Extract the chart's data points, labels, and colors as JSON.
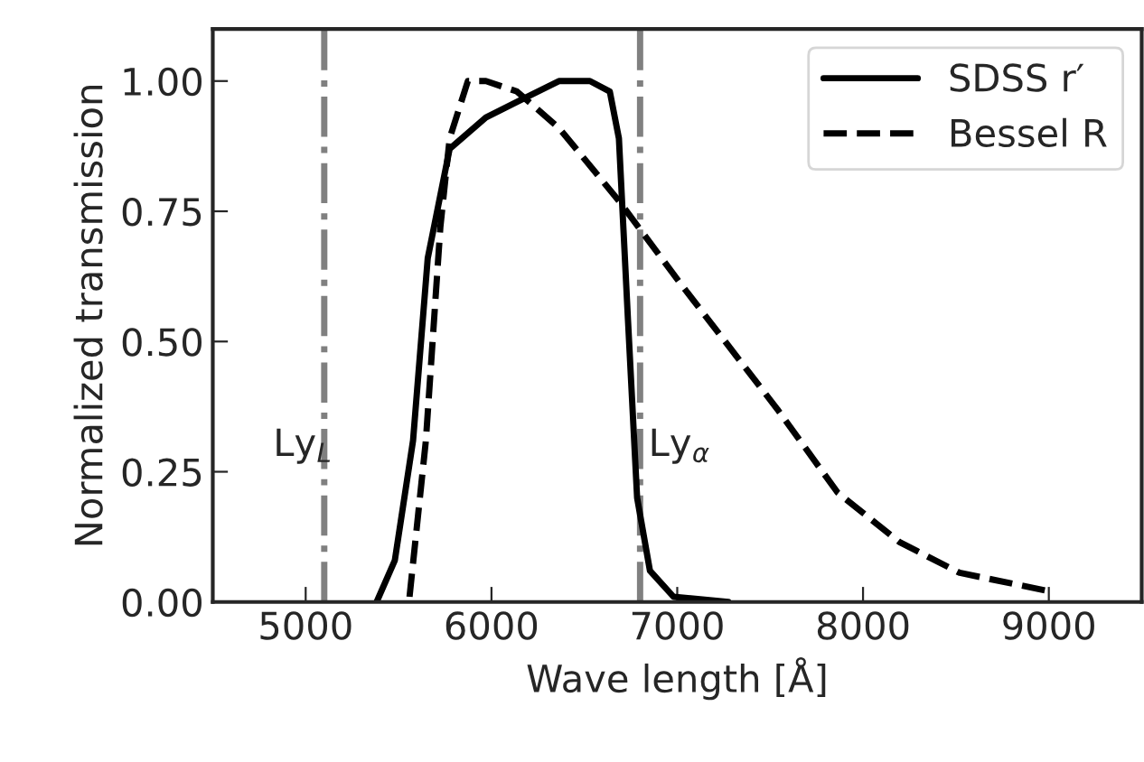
{
  "chart_data": {
    "type": "line",
    "xlabel": "Wave length [Å]",
    "ylabel": "Normalized transmission",
    "xlim": [
      4500,
      9500
    ],
    "xticks": [
      5000,
      6000,
      7000,
      8000,
      9000
    ],
    "ylim": [
      0,
      1.1
    ],
    "yticks": [
      {
        "value": 0,
        "label": "0.00"
      },
      {
        "value": 0.25,
        "label": "0.25"
      },
      {
        "value": 0.5,
        "label": "0.50"
      },
      {
        "value": 0.75,
        "label": "0.75"
      },
      {
        "value": 1.0,
        "label": "1.00"
      }
    ],
    "grid": false,
    "legend": "top right",
    "marker": "none",
    "series": [
      {
        "name": "SDSS r′",
        "color": "#000000",
        "line_style": "solid",
        "x": [
          5382,
          5480,
          5578,
          5657,
          5775,
          5970,
          6137,
          6363,
          6530,
          6637,
          6686,
          6735,
          6784,
          6853,
          6980,
          7275
        ],
        "values": [
          0,
          0.08,
          0.31,
          0.66,
          0.87,
          0.93,
          0.96,
          1.0,
          1.0,
          0.98,
          0.89,
          0.54,
          0.2,
          0.06,
          0.01,
          0
        ]
      },
      {
        "name": "Bessel R",
        "color": "#000000",
        "line_style": "dashed",
        "x": [
          5559,
          5647,
          5725,
          5775,
          5873,
          5970,
          6137,
          6363,
          6686,
          7020,
          7539,
          7863,
          8196,
          8520,
          9010
        ],
        "values": [
          0.01,
          0.31,
          0.72,
          0.89,
          1.0,
          1.0,
          0.98,
          0.91,
          0.77,
          0.61,
          0.37,
          0.21,
          0.115,
          0.056,
          0.02
        ]
      }
    ],
    "ref_lines": [
      {
        "axis": "x",
        "value": 5100,
        "label": "Ly$_{L}$",
        "color": "#808080",
        "line_style": "dashdot"
      },
      {
        "axis": "x",
        "value": 6800,
        "label": "Ly$_{α}$",
        "color": "#808080",
        "line_style": "dashdot"
      }
    ]
  }
}
